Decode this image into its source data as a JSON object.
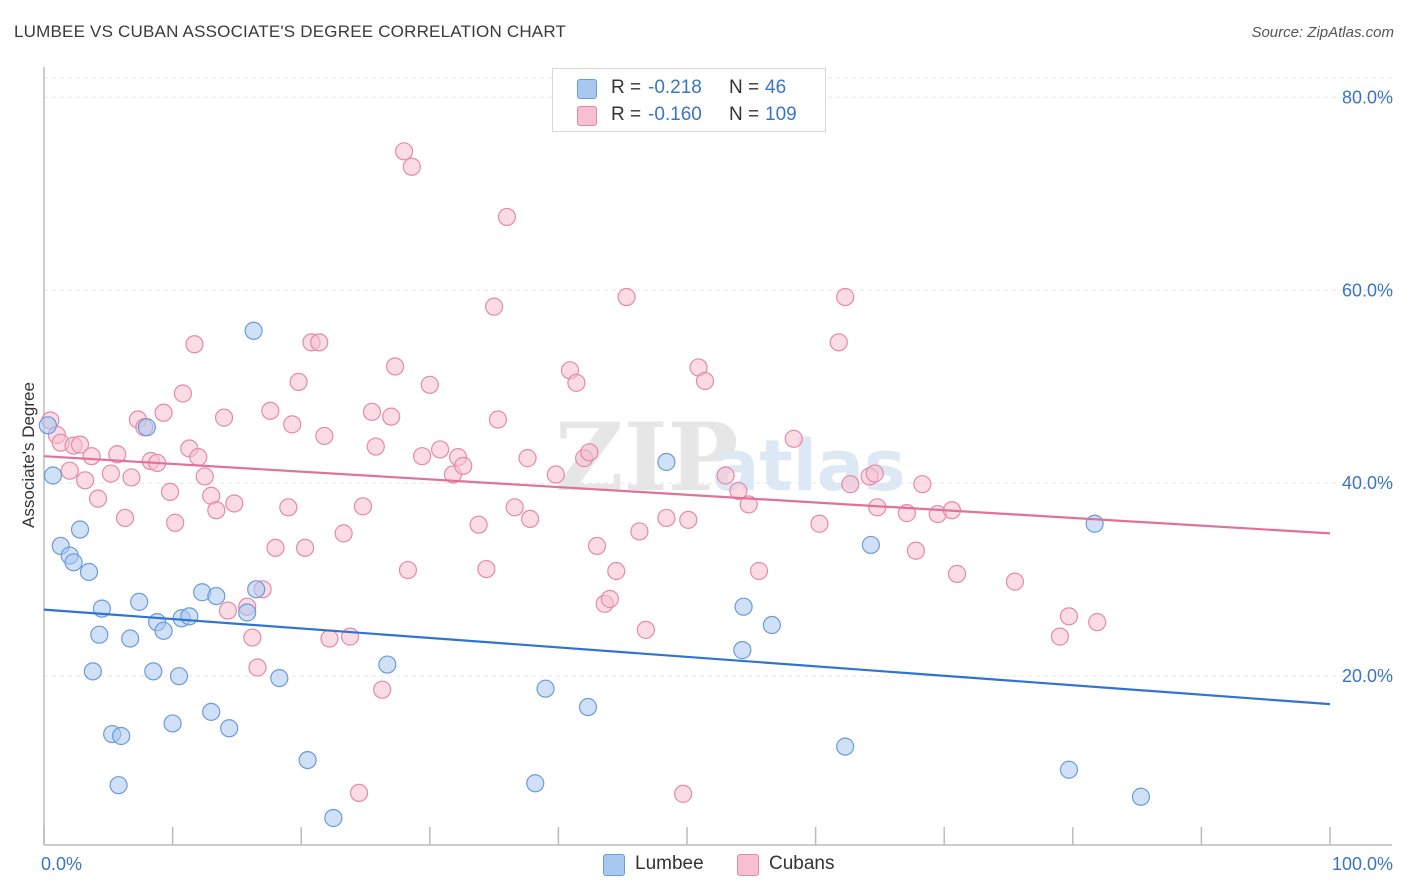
{
  "title": "LUMBEE VS CUBAN ASSOCIATE'S DEGREE CORRELATION CHART",
  "source": "Source: ZipAtlas.com",
  "watermark": {
    "zip": "ZIP",
    "atlas": "atlas"
  },
  "legend": {
    "rows": [
      {
        "r_label": "R =",
        "r_value": "-0.218",
        "n_label": "N =",
        "n_value": "46",
        "color": "#a9c8f0",
        "border": "#6b9bd8"
      },
      {
        "r_label": "R =",
        "r_value": "-0.160",
        "n_label": "N =",
        "n_value": "109",
        "color": "#f8bfd0",
        "border": "#e58aa7"
      }
    ]
  },
  "bottom_legend": [
    {
      "label": "Lumbee",
      "color": "#a9c8f0",
      "border": "#6b9bd8"
    },
    {
      "label": "Cubans",
      "color": "#f8bfd0",
      "border": "#e58aa7"
    }
  ],
  "chart_data": {
    "type": "scatter",
    "title": "LUMBEE VS CUBAN ASSOCIATE'S DEGREE CORRELATION CHART",
    "xlabel": "",
    "ylabel": "Associate's Degree",
    "xlim": [
      0,
      100
    ],
    "ylim": [
      2.5,
      82
    ],
    "x_tick_labels": [
      "0.0%",
      "100.0%"
    ],
    "y_ticks": [
      20,
      40,
      60,
      80
    ],
    "y_tick_labels": [
      "20.0%",
      "40.0%",
      "60.0%",
      "80.0%"
    ],
    "grid": true,
    "legend_position": "top-center",
    "series": [
      {
        "name": "Lumbee",
        "color": "#6b9bd8",
        "fill": "#a9c8f0",
        "trend_color": "#2f74d0",
        "trend": {
          "x": [
            0,
            100
          ],
          "y": [
            26.9,
            17.1
          ]
        },
        "points": [
          [
            0.3,
            46.0
          ],
          [
            0.7,
            40.8
          ],
          [
            1.3,
            33.5
          ],
          [
            2.0,
            32.5
          ],
          [
            2.3,
            31.8
          ],
          [
            2.8,
            35.2
          ],
          [
            3.5,
            30.8
          ],
          [
            3.8,
            20.5
          ],
          [
            4.3,
            24.3
          ],
          [
            4.5,
            27.0
          ],
          [
            5.3,
            14.0
          ],
          [
            5.8,
            8.7
          ],
          [
            6.0,
            13.8
          ],
          [
            6.7,
            23.9
          ],
          [
            7.4,
            27.7
          ],
          [
            8.0,
            45.8
          ],
          [
            8.5,
            20.5
          ],
          [
            8.8,
            25.6
          ],
          [
            9.3,
            24.7
          ],
          [
            10.0,
            15.1
          ],
          [
            10.5,
            20.0
          ],
          [
            10.7,
            26.0
          ],
          [
            11.3,
            26.2
          ],
          [
            12.3,
            28.7
          ],
          [
            13.0,
            16.3
          ],
          [
            13.4,
            28.3
          ],
          [
            14.4,
            14.6
          ],
          [
            15.8,
            26.6
          ],
          [
            16.3,
            55.8
          ],
          [
            16.5,
            29.0
          ],
          [
            18.3,
            19.8
          ],
          [
            20.5,
            11.3
          ],
          [
            22.5,
            5.3
          ],
          [
            26.7,
            21.2
          ],
          [
            39.0,
            18.7
          ],
          [
            38.2,
            8.9
          ],
          [
            42.3,
            16.8
          ],
          [
            48.4,
            42.2
          ],
          [
            54.3,
            22.7
          ],
          [
            54.4,
            27.2
          ],
          [
            56.6,
            25.3
          ],
          [
            62.3,
            12.7
          ],
          [
            64.3,
            33.6
          ],
          [
            79.7,
            10.3
          ],
          [
            81.7,
            35.8
          ],
          [
            85.3,
            7.5
          ]
        ]
      },
      {
        "name": "Cubans",
        "color": "#e58aa7",
        "fill": "#f8bfd0",
        "trend_color": "#e0719b",
        "trend": {
          "x": [
            0,
            100
          ],
          "y": [
            42.8,
            34.8
          ]
        },
        "points": [
          [
            0.5,
            46.5
          ],
          [
            1.0,
            45.0
          ],
          [
            1.3,
            44.2
          ],
          [
            2.0,
            41.3
          ],
          [
            2.3,
            43.9
          ],
          [
            2.8,
            44.0
          ],
          [
            3.2,
            40.3
          ],
          [
            3.7,
            42.8
          ],
          [
            4.2,
            38.4
          ],
          [
            5.2,
            41.0
          ],
          [
            5.7,
            43.0
          ],
          [
            6.3,
            36.4
          ],
          [
            6.8,
            40.6
          ],
          [
            7.3,
            46.6
          ],
          [
            7.8,
            45.8
          ],
          [
            8.3,
            42.3
          ],
          [
            8.8,
            42.1
          ],
          [
            9.3,
            47.3
          ],
          [
            9.8,
            39.1
          ],
          [
            10.2,
            35.9
          ],
          [
            10.8,
            49.3
          ],
          [
            11.3,
            43.6
          ],
          [
            11.7,
            54.4
          ],
          [
            12.0,
            42.7
          ],
          [
            12.5,
            40.7
          ],
          [
            13.0,
            38.7
          ],
          [
            13.4,
            37.2
          ],
          [
            14.0,
            46.8
          ],
          [
            14.3,
            26.8
          ],
          [
            14.8,
            37.9
          ],
          [
            15.8,
            27.2
          ],
          [
            16.2,
            24.0
          ],
          [
            16.6,
            20.9
          ],
          [
            17.0,
            29.0
          ],
          [
            17.6,
            47.5
          ],
          [
            18.0,
            33.3
          ],
          [
            19.0,
            37.5
          ],
          [
            19.3,
            46.1
          ],
          [
            19.8,
            50.5
          ],
          [
            20.3,
            33.3
          ],
          [
            20.8,
            54.6
          ],
          [
            21.4,
            54.6
          ],
          [
            21.8,
            44.9
          ],
          [
            22.2,
            23.9
          ],
          [
            23.3,
            34.8
          ],
          [
            23.8,
            24.1
          ],
          [
            24.5,
            7.9
          ],
          [
            24.8,
            37.6
          ],
          [
            25.5,
            47.4
          ],
          [
            25.8,
            43.8
          ],
          [
            26.3,
            18.6
          ],
          [
            27.0,
            46.9
          ],
          [
            27.3,
            52.1
          ],
          [
            28.0,
            74.4
          ],
          [
            28.3,
            31.0
          ],
          [
            28.6,
            72.8
          ],
          [
            29.4,
            42.8
          ],
          [
            30.0,
            50.2
          ],
          [
            30.8,
            43.5
          ],
          [
            31.8,
            40.9
          ],
          [
            32.2,
            42.7
          ],
          [
            32.6,
            41.8
          ],
          [
            33.8,
            35.7
          ],
          [
            34.4,
            31.1
          ],
          [
            35.0,
            58.3
          ],
          [
            35.3,
            46.6
          ],
          [
            36.0,
            67.6
          ],
          [
            36.6,
            37.5
          ],
          [
            37.6,
            42.6
          ],
          [
            37.8,
            36.3
          ],
          [
            39.8,
            40.9
          ],
          [
            40.9,
            51.7
          ],
          [
            41.4,
            50.4
          ],
          [
            42.0,
            42.6
          ],
          [
            42.4,
            43.2
          ],
          [
            43.0,
            33.5
          ],
          [
            43.6,
            27.5
          ],
          [
            44.0,
            28.0
          ],
          [
            44.5,
            30.9
          ],
          [
            45.3,
            59.3
          ],
          [
            46.3,
            35.0
          ],
          [
            46.8,
            24.8
          ],
          [
            48.4,
            36.4
          ],
          [
            49.7,
            7.8
          ],
          [
            50.1,
            36.2
          ],
          [
            50.9,
            52.0
          ],
          [
            51.4,
            50.6
          ],
          [
            53.0,
            40.8
          ],
          [
            54.0,
            39.2
          ],
          [
            54.8,
            37.8
          ],
          [
            55.6,
            30.9
          ],
          [
            58.3,
            44.6
          ],
          [
            60.3,
            35.8
          ],
          [
            61.8,
            54.6
          ],
          [
            62.3,
            59.3
          ],
          [
            62.7,
            39.9
          ],
          [
            64.2,
            40.7
          ],
          [
            64.6,
            41.0
          ],
          [
            64.8,
            37.5
          ],
          [
            67.1,
            36.9
          ],
          [
            67.8,
            33.0
          ],
          [
            68.3,
            39.9
          ],
          [
            69.5,
            36.8
          ],
          [
            70.6,
            37.2
          ],
          [
            71.0,
            30.6
          ],
          [
            75.5,
            29.8
          ],
          [
            79.0,
            24.1
          ],
          [
            79.7,
            26.2
          ],
          [
            81.9,
            25.6
          ]
        ]
      }
    ]
  }
}
